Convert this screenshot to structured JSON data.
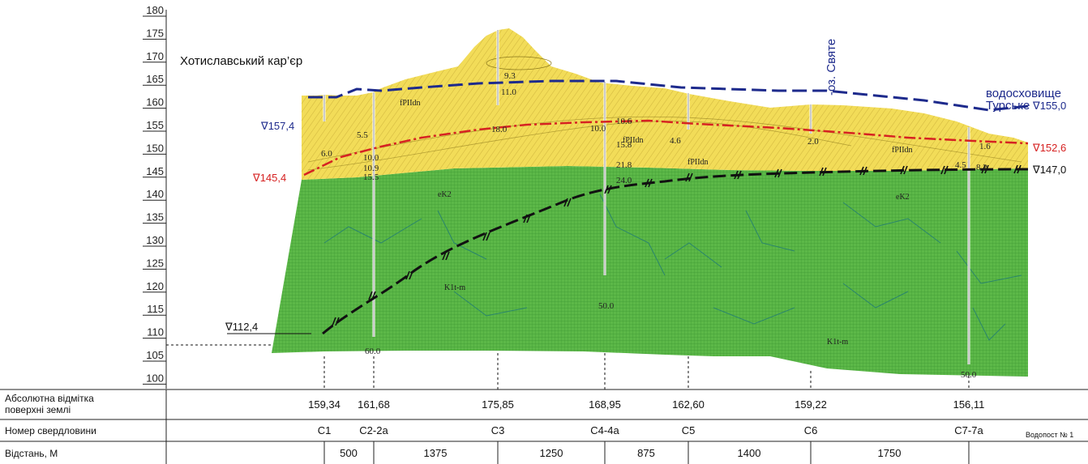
{
  "elevation_axis": {
    "ticks": [
      "180",
      "175",
      "170",
      "165",
      "160",
      "155",
      "150",
      "145",
      "140",
      "135",
      "130",
      "125",
      "120",
      "115",
      "110",
      "105",
      "100"
    ]
  },
  "labels": {
    "quarry": "Хотиславський кар’єр",
    "lake": "-оз. Святе",
    "reservoir_line1": "водосховище",
    "reservoir_line2": "Турське"
  },
  "water_levels": {
    "left_top": "∇157,4",
    "left_mid": "∇145,4",
    "left_low": "∇112,4",
    "right_top": "∇155,0",
    "right_mid": "∇152,6",
    "right_low": "∇147,0"
  },
  "colors": {
    "yellow_layer": "#f2dc58",
    "green_layer": "#5cb848",
    "blue_line": "#1d2a8c",
    "red_line": "#d62222",
    "black_line": "#111111",
    "red_text": "#d62222",
    "blue_text": "#1d2a8c"
  },
  "geo_labels": {
    "fpIIdn_1": "fPIIdn",
    "fpIIdn_2": "fPIIdn",
    "fpIIdn_3": "fPIIdn",
    "fpIIdn_4": "fPIIdn",
    "eK2_1": "eK2",
    "eK2_2": "eK2",
    "K1tm_1": "K1t-m",
    "K1tm_2": "K1t-m"
  },
  "depth_values": {
    "v6_0": "6.0",
    "v5_5": "5.5",
    "v10_0a": "10.0",
    "v10_9": "10.9",
    "v15_5": "15.5",
    "v9_3": "9.3",
    "v11_0": "11.0",
    "v18_0": "18.0",
    "v10_0b": "10.0",
    "v10_6": "10.6",
    "v15_8": "15.8",
    "v21_8": "21.8",
    "v24_0": "24.0",
    "v4_6": "4.6",
    "v2_0": "2.0",
    "v1_6": "1.6",
    "v4_5": "4.5",
    "v8_2": "8.2",
    "v60_0": "60.0",
    "v50_0a": "50.0",
    "v50_0b": "50.0"
  },
  "table": {
    "row1_label_line1": "Абсолютна відмітка",
    "row1_label_line2": "поверхні землі",
    "row2_label": "Номер свердловини",
    "row3_label": "Відстань, М",
    "elevations": [
      "159,34",
      "161,68",
      "175,85",
      "168,95",
      "162,60",
      "159,22",
      "156,11"
    ],
    "wells": [
      "С1",
      "С2-2а",
      "С3",
      "С4-4а",
      "С5",
      "С6",
      "С7-7а"
    ],
    "distances": [
      "500",
      "1375",
      "1250",
      "875",
      "1400",
      "1750"
    ],
    "gauge_post": "Водопост № 1"
  }
}
